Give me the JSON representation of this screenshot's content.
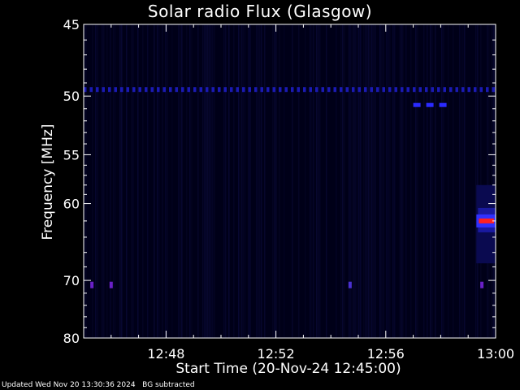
{
  "chart_data": {
    "type": "heatmap",
    "title": "Solar radio Flux (Glasgow)",
    "xlabel": "Start Time (20-Nov-24 12:45:00)",
    "ylabel": "Frequency [MHz]",
    "x_ticks": [
      "12:48",
      "12:52",
      "12:56",
      "13:00"
    ],
    "x_tick_minutes": [
      3,
      7,
      11,
      15
    ],
    "xlim_minutes": [
      0,
      15
    ],
    "y_ticks": [
      45,
      50,
      55,
      60,
      70,
      80
    ],
    "ylim": [
      45,
      80
    ],
    "y_scale": "reciprocal",
    "background_color": "#000018",
    "features": [
      {
        "kind": "band",
        "freq": 49.5,
        "t_start": 0.0,
        "t_end": 15.0,
        "color": "#1a1ab4"
      },
      {
        "kind": "band",
        "freq": 50.7,
        "t_start": 12.0,
        "t_end": 13.4,
        "color": "#2a2aff"
      },
      {
        "kind": "burst",
        "freq_low": 58.0,
        "freq_high": 67.5,
        "t_start": 14.3,
        "t_end": 15.0,
        "peak_freq": 62.0,
        "color": "#ff2020"
      },
      {
        "kind": "spot",
        "freq": 70.7,
        "t": 0.3,
        "color": "#6a20c8"
      },
      {
        "kind": "spot",
        "freq": 70.7,
        "t": 1.0,
        "color": "#6a20c8"
      },
      {
        "kind": "spot",
        "freq": 70.7,
        "t": 9.7,
        "color": "#4a30d0"
      },
      {
        "kind": "spot",
        "freq": 70.7,
        "t": 14.5,
        "color": "#6a20c8"
      }
    ]
  },
  "footer": {
    "updated": "Updated Wed Nov 20 13:30:36 2024",
    "note": "BG subtracted"
  }
}
